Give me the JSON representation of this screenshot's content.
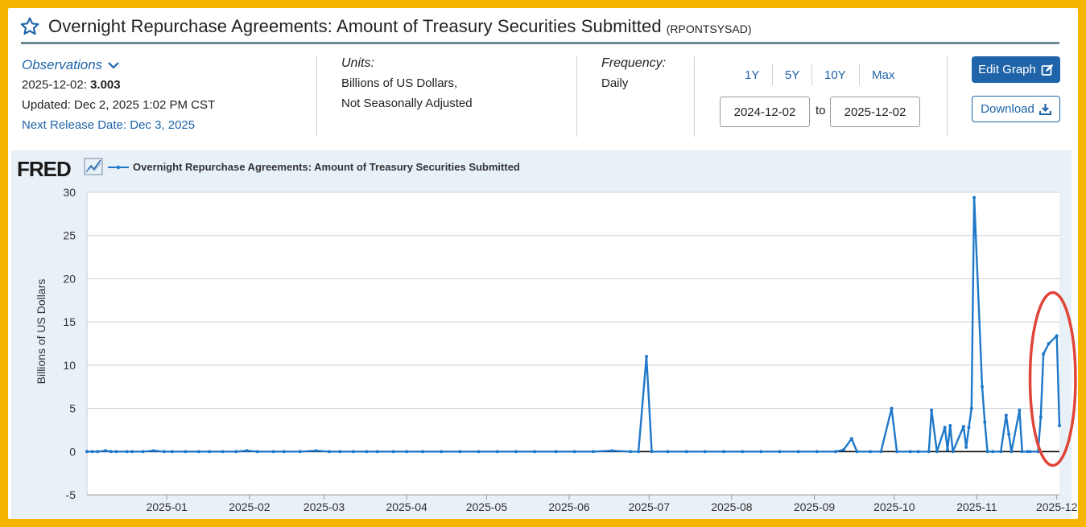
{
  "header": {
    "title": "Overnight Repurchase Agreements: Amount of Treasury Securities Submitted",
    "series_id": "(RPONTSYSAD)",
    "icon": "star-icon"
  },
  "observations": {
    "label": "Observations",
    "date": "2025-12-02:",
    "value": "3.003",
    "updated": "Updated: Dec 2, 2025 1:02 PM CST",
    "next_release": "Next Release Date: Dec 3, 2025"
  },
  "units": {
    "label": "Units:",
    "line1": "Billions of US Dollars,",
    "line2": "Not Seasonally Adjusted"
  },
  "frequency": {
    "label": "Frequency:",
    "value": "Daily"
  },
  "range": {
    "buttons": [
      "1Y",
      "5Y",
      "10Y",
      "Max"
    ],
    "start": "2024-12-02",
    "to_label": "to",
    "end": "2025-12-02"
  },
  "actions": {
    "edit_label": "Edit Graph",
    "download_label": "Download"
  },
  "colors": {
    "accent": "#1f64a8",
    "series": "#1f78c8",
    "panel_bg": "#e8f0f8",
    "highlight": "#e0453a",
    "frame": "#f7b500"
  },
  "chart_data": {
    "type": "line",
    "logo": "FRED",
    "legend_label": "Overnight Repurchase Agreements: Amount of Treasury Securities Submitted",
    "ylabel": "Billions of US Dollars",
    "ylim": [
      -5,
      30
    ],
    "yticks": [
      -5,
      0,
      5,
      10,
      15,
      20,
      25,
      30
    ],
    "xlim": [
      "2024-12-02",
      "2025-12-02"
    ],
    "xticks": [
      "2025-01",
      "2025-02",
      "2025-03",
      "2025-04",
      "2025-05",
      "2025-06",
      "2025-07",
      "2025-08",
      "2025-09",
      "2025-10",
      "2025-11",
      "2025-12"
    ],
    "grid": true,
    "legend_position": "top-left",
    "highlight": {
      "shape": "ellipse",
      "from": "2025-11-24",
      "to": "2025-12-05"
    },
    "series": [
      {
        "name": "Overnight Repurchase Agreements: Amount of Treasury Securities Submitted",
        "points": [
          [
            "2024-12-02",
            0
          ],
          [
            "2024-12-04",
            0
          ],
          [
            "2024-12-06",
            0
          ],
          [
            "2024-12-09",
            0.1
          ],
          [
            "2024-12-11",
            0
          ],
          [
            "2024-12-13",
            0
          ],
          [
            "2024-12-17",
            0
          ],
          [
            "2024-12-19",
            0
          ],
          [
            "2024-12-23",
            0
          ],
          [
            "2024-12-27",
            0.1
          ],
          [
            "2024-12-31",
            0
          ],
          [
            "2025-01-03",
            0
          ],
          [
            "2025-01-08",
            0
          ],
          [
            "2025-01-13",
            0
          ],
          [
            "2025-01-17",
            0
          ],
          [
            "2025-01-22",
            0
          ],
          [
            "2025-01-27",
            0
          ],
          [
            "2025-01-31",
            0.1
          ],
          [
            "2025-02-04",
            0
          ],
          [
            "2025-02-10",
            0
          ],
          [
            "2025-02-14",
            0
          ],
          [
            "2025-02-20",
            0
          ],
          [
            "2025-02-26",
            0.1
          ],
          [
            "2025-03-03",
            0
          ],
          [
            "2025-03-07",
            0
          ],
          [
            "2025-03-12",
            0
          ],
          [
            "2025-03-17",
            0
          ],
          [
            "2025-03-21",
            0
          ],
          [
            "2025-03-27",
            0
          ],
          [
            "2025-04-01",
            0
          ],
          [
            "2025-04-07",
            0
          ],
          [
            "2025-04-14",
            0
          ],
          [
            "2025-04-21",
            0
          ],
          [
            "2025-04-28",
            0
          ],
          [
            "2025-05-05",
            0
          ],
          [
            "2025-05-12",
            0
          ],
          [
            "2025-05-19",
            0
          ],
          [
            "2025-05-27",
            0
          ],
          [
            "2025-06-03",
            0
          ],
          [
            "2025-06-10",
            0
          ],
          [
            "2025-06-17",
            0.1
          ],
          [
            "2025-06-24",
            0
          ],
          [
            "2025-06-27",
            0
          ],
          [
            "2025-06-30",
            11.0
          ],
          [
            "2025-07-02",
            0
          ],
          [
            "2025-07-08",
            0
          ],
          [
            "2025-07-15",
            0
          ],
          [
            "2025-07-22",
            0
          ],
          [
            "2025-07-29",
            0
          ],
          [
            "2025-08-05",
            0
          ],
          [
            "2025-08-12",
            0
          ],
          [
            "2025-08-19",
            0
          ],
          [
            "2025-08-26",
            0
          ],
          [
            "2025-09-02",
            0
          ],
          [
            "2025-09-09",
            0
          ],
          [
            "2025-09-12",
            0.2
          ],
          [
            "2025-09-15",
            1.5
          ],
          [
            "2025-09-17",
            0
          ],
          [
            "2025-09-22",
            0
          ],
          [
            "2025-09-26",
            0
          ],
          [
            "2025-09-30",
            5.0
          ],
          [
            "2025-10-02",
            0
          ],
          [
            "2025-10-07",
            0
          ],
          [
            "2025-10-10",
            0
          ],
          [
            "2025-10-14",
            0
          ],
          [
            "2025-10-15",
            4.8
          ],
          [
            "2025-10-17",
            0
          ],
          [
            "2025-10-20",
            2.8
          ],
          [
            "2025-10-21",
            0.2
          ],
          [
            "2025-10-22",
            3.0
          ],
          [
            "2025-10-23",
            0
          ],
          [
            "2025-10-27",
            2.9
          ],
          [
            "2025-10-28",
            0.5
          ],
          [
            "2025-10-29",
            2.8
          ],
          [
            "2025-10-30",
            5.0
          ],
          [
            "2025-10-31",
            29.4
          ],
          [
            "2025-11-03",
            7.5
          ],
          [
            "2025-11-04",
            3.4
          ],
          [
            "2025-11-05",
            0
          ],
          [
            "2025-11-07",
            0
          ],
          [
            "2025-11-10",
            0
          ],
          [
            "2025-11-12",
            4.2
          ],
          [
            "2025-11-13",
            2.0
          ],
          [
            "2025-11-14",
            0
          ],
          [
            "2025-11-17",
            4.8
          ],
          [
            "2025-11-18",
            0
          ],
          [
            "2025-11-20",
            0
          ],
          [
            "2025-11-21",
            0
          ],
          [
            "2025-11-24",
            0
          ],
          [
            "2025-11-25",
            4.0
          ],
          [
            "2025-11-26",
            11.3
          ],
          [
            "2025-11-28",
            12.5
          ],
          [
            "2025-12-01",
            13.4
          ],
          [
            "2025-12-02",
            3.0
          ]
        ]
      }
    ]
  }
}
